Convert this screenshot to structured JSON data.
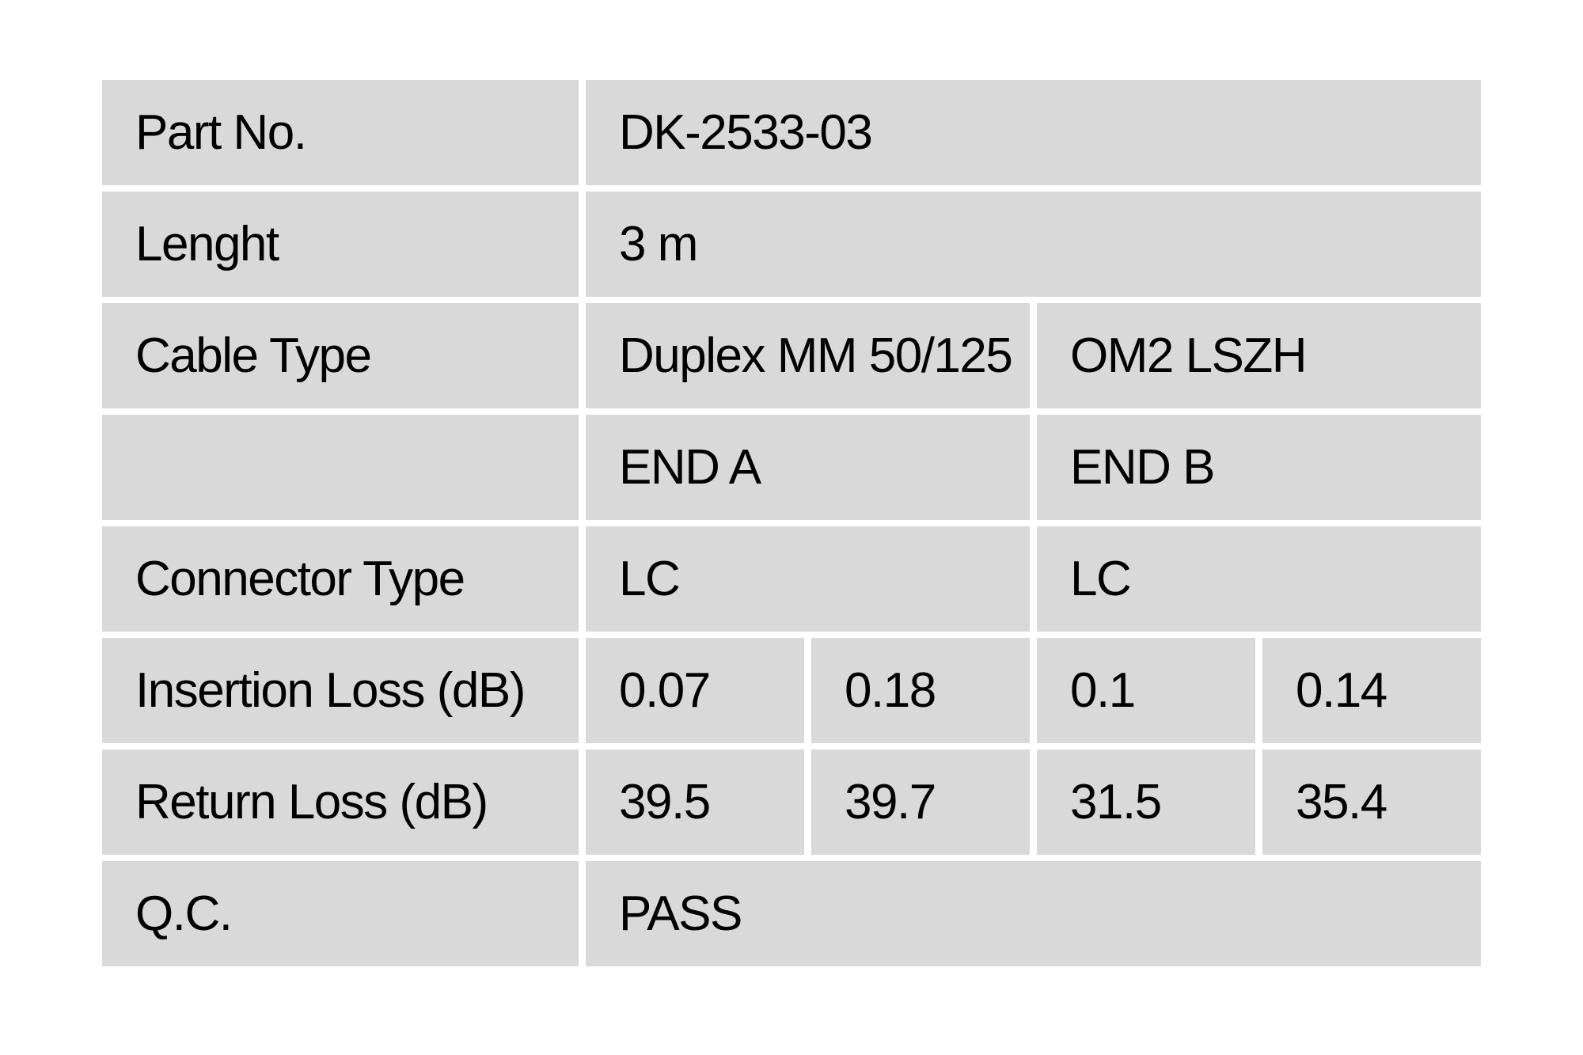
{
  "page": {
    "background": "#ffffff",
    "description": "Fiber patch cable quality-control spec table"
  },
  "colors": {
    "cell_bg": "#d9d9d9",
    "text": "#000000",
    "gap": "#ffffff"
  },
  "table": {
    "rows": [
      {
        "key": "part-no",
        "label": "Part No.",
        "cells": [
          {
            "text": "DK-2533-03",
            "span": 4
          }
        ]
      },
      {
        "key": "length",
        "label": "Lenght",
        "cells": [
          {
            "text": "3 m",
            "span": 4
          }
        ]
      },
      {
        "key": "cable-type",
        "label": "Cable Type",
        "cells": [
          {
            "text": "Duplex MM 50/125",
            "span": 2
          },
          {
            "text": "OM2 LSZH",
            "span": 2
          }
        ]
      },
      {
        "key": "ends",
        "label": "",
        "cells": [
          {
            "text": "END A",
            "span": 2
          },
          {
            "text": "END B",
            "span": 2
          }
        ]
      },
      {
        "key": "connector-type",
        "label": "Connector Type",
        "cells": [
          {
            "text": "LC",
            "span": 2
          },
          {
            "text": "LC",
            "span": 2
          }
        ]
      },
      {
        "key": "insertion-loss",
        "label": "Insertion Loss (dB)",
        "cells": [
          {
            "text": "0.07",
            "span": 1
          },
          {
            "text": "0.18",
            "span": 1
          },
          {
            "text": "0.1",
            "span": 1
          },
          {
            "text": "0.14",
            "span": 1
          }
        ]
      },
      {
        "key": "return-loss",
        "label": "Return Loss (dB)",
        "cells": [
          {
            "text": "39.5",
            "span": 1
          },
          {
            "text": "39.7",
            "span": 1
          },
          {
            "text": "31.5",
            "span": 1
          },
          {
            "text": "35.4",
            "span": 1
          }
        ]
      },
      {
        "key": "qc",
        "label": "Q.C.",
        "cells": [
          {
            "text": "PASS",
            "span": 4
          }
        ]
      }
    ]
  }
}
